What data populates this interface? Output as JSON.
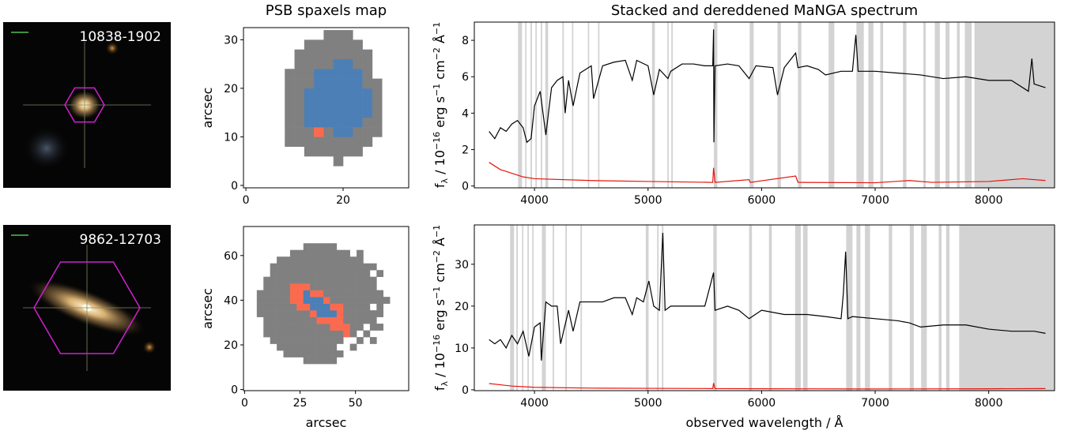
{
  "chart_data": [
    {
      "type": "image",
      "label": "10838-1902"
    },
    {
      "type": "heatmap",
      "title": "PSB spaxels map",
      "y_label": "arcsec",
      "x": [
        9,
        11,
        13,
        15,
        17,
        19,
        21,
        23,
        25,
        27
      ],
      "y": [
        5,
        7,
        9,
        11,
        13,
        15,
        17,
        19,
        21,
        23,
        25,
        27,
        29,
        31
      ],
      "z": [
        [
          0,
          0,
          0,
          0,
          0,
          1,
          0,
          0,
          0,
          0
        ],
        [
          0,
          0,
          1,
          1,
          1,
          1,
          1,
          1,
          0,
          0
        ],
        [
          1,
          1,
          1,
          1,
          1,
          1,
          1,
          1,
          1,
          0
        ],
        [
          1,
          1,
          1,
          3,
          1,
          2,
          2,
          1,
          1,
          1
        ],
        [
          1,
          1,
          2,
          2,
          2,
          2,
          2,
          2,
          1,
          1
        ],
        [
          1,
          1,
          2,
          2,
          2,
          2,
          2,
          2,
          2,
          1
        ],
        [
          1,
          1,
          2,
          2,
          2,
          2,
          2,
          2,
          2,
          1
        ],
        [
          1,
          1,
          2,
          2,
          2,
          2,
          2,
          2,
          2,
          1
        ],
        [
          1,
          1,
          1,
          2,
          2,
          2,
          2,
          2,
          1,
          1
        ],
        [
          1,
          1,
          1,
          2,
          2,
          2,
          2,
          2,
          1,
          0
        ],
        [
          0,
          1,
          1,
          1,
          1,
          2,
          2,
          1,
          1,
          0
        ],
        [
          0,
          1,
          1,
          1,
          1,
          1,
          1,
          1,
          1,
          0
        ],
        [
          0,
          0,
          1,
          1,
          1,
          1,
          1,
          1,
          0,
          0
        ],
        [
          0,
          0,
          0,
          0,
          1,
          1,
          1,
          0,
          0,
          0
        ]
      ],
      "palette": [
        null,
        "#808080",
        "#4b7fb6",
        "#fa6a4f"
      ],
      "xlim": [
        -0.5,
        33.5
      ],
      "ylim": [
        -0.5,
        32.5
      ],
      "xticks": [
        0,
        20
      ],
      "yticks": [
        0,
        10,
        20,
        30
      ]
    },
    {
      "type": "line",
      "title": "Stacked and dereddened MaNGA spectrum",
      "y_label": [
        "f",
        "λ",
        " / 10",
        "−16",
        " erg s",
        "−1",
        " cm",
        "−2",
        " Å",
        "−1"
      ],
      "xlim": [
        3470,
        8580
      ],
      "ylim": [
        -0.1,
        9.0
      ],
      "xticks": [
        4000,
        5000,
        6000,
        7000,
        8000
      ],
      "yticks": [
        0,
        2,
        4,
        6,
        8
      ],
      "shade_color": "#d3d3d3",
      "shaded_ranges": [
        [
          3855,
          3890
        ],
        [
          3918,
          3930
        ],
        [
          3965,
          3978
        ],
        [
          4008,
          4020
        ],
        [
          4055,
          4068
        ],
        [
          4095,
          4120
        ],
        [
          4245,
          4258
        ],
        [
          4330,
          4342
        ],
        [
          4470,
          4482
        ],
        [
          4560,
          4572
        ],
        [
          5035,
          5060
        ],
        [
          5170,
          5182
        ],
        [
          5205,
          5218
        ],
        [
          5580,
          5610
        ],
        [
          5895,
          5930
        ],
        [
          6140,
          6170
        ],
        [
          6320,
          6350
        ],
        [
          6590,
          6640
        ],
        [
          6835,
          6900
        ],
        [
          6940,
          6985
        ],
        [
          7045,
          7070
        ],
        [
          7245,
          7275
        ],
        [
          7425,
          7445
        ],
        [
          7525,
          7570
        ],
        [
          7620,
          7655
        ],
        [
          7720,
          7745
        ],
        [
          7790,
          7850
        ],
        [
          7875,
          8580
        ]
      ],
      "series": [
        {
          "color": "#000000",
          "x": [
            3600,
            3650,
            3700,
            3750,
            3800,
            3850,
            3900,
            3933,
            3970,
            4000,
            4050,
            4100,
            4150,
            4200,
            4250,
            4270,
            4300,
            4340,
            4400,
            4500,
            4520,
            4600,
            4700,
            4800,
            4861,
            4900,
            5000,
            5050,
            5100,
            5175,
            5200,
            5300,
            5400,
            5500,
            5570,
            5577,
            5580,
            5590,
            5700,
            5800,
            5890,
            5950,
            6100,
            6140,
            6200,
            6300,
            6320,
            6400,
            6500,
            6563,
            6700,
            6800,
            6830,
            6850,
            7000,
            7200,
            7400,
            7600,
            7800,
            8000,
            8200,
            8350,
            8380,
            8400,
            8500
          ],
          "values": [
            3.0,
            2.6,
            3.2,
            3.0,
            3.4,
            3.6,
            3.2,
            2.4,
            2.6,
            4.4,
            5.2,
            2.8,
            5.4,
            5.8,
            6.0,
            4.0,
            5.8,
            4.4,
            6.2,
            6.6,
            4.8,
            6.6,
            6.8,
            6.9,
            5.8,
            6.9,
            6.6,
            5.0,
            6.4,
            5.9,
            6.3,
            6.7,
            6.7,
            6.6,
            6.6,
            8.6,
            2.4,
            6.6,
            6.7,
            6.6,
            5.9,
            6.6,
            6.5,
            5.0,
            6.5,
            7.3,
            6.5,
            6.6,
            6.4,
            6.1,
            6.3,
            6.3,
            8.3,
            6.3,
            6.3,
            6.2,
            6.1,
            5.9,
            6.0,
            5.8,
            5.8,
            5.2,
            7.0,
            5.6,
            5.4
          ]
        },
        {
          "color": "#e8140c",
          "x": [
            3600,
            3650,
            3700,
            3800,
            3900,
            4000,
            4500,
            5000,
            5570,
            5577,
            5590,
            5890,
            5900,
            6300,
            6320,
            7000,
            7300,
            7500,
            8000,
            8300,
            8500
          ],
          "values": [
            1.3,
            1.1,
            0.9,
            0.7,
            0.5,
            0.4,
            0.3,
            0.25,
            0.2,
            1.0,
            0.2,
            0.35,
            0.2,
            0.55,
            0.2,
            0.18,
            0.3,
            0.2,
            0.25,
            0.4,
            0.3
          ]
        }
      ]
    },
    {
      "type": "image",
      "label": "9862-12703"
    },
    {
      "type": "heatmap",
      "x_label": "arcsec",
      "y_label": "arcsec",
      "x": [
        7,
        10,
        13,
        16,
        19,
        22,
        25,
        28,
        31,
        34,
        37,
        40,
        43,
        46,
        49,
        52,
        55,
        58,
        61,
        64
      ],
      "y": [
        13,
        16,
        19,
        22,
        25,
        28,
        31,
        34,
        37,
        40,
        43,
        46,
        49,
        52,
        55,
        58,
        61,
        64
      ],
      "z": [
        [
          0,
          0,
          0,
          0,
          0,
          0,
          0,
          1,
          1,
          1,
          1,
          1,
          0,
          0,
          0,
          0,
          0,
          0,
          0,
          0
        ],
        [
          0,
          0,
          0,
          0,
          1,
          1,
          1,
          1,
          1,
          1,
          1,
          1,
          1,
          0,
          0,
          0,
          0,
          0,
          0,
          0
        ],
        [
          0,
          0,
          0,
          1,
          1,
          1,
          1,
          1,
          1,
          1,
          1,
          1,
          0,
          0,
          1,
          0,
          0,
          0,
          0,
          0
        ],
        [
          0,
          0,
          1,
          1,
          1,
          1,
          1,
          1,
          1,
          1,
          1,
          1,
          1,
          0,
          0,
          1,
          0,
          1,
          0,
          0
        ],
        [
          0,
          1,
          1,
          1,
          1,
          1,
          1,
          1,
          1,
          1,
          1,
          1,
          1,
          3,
          1,
          0,
          1,
          0,
          0,
          0
        ],
        [
          0,
          1,
          1,
          1,
          1,
          1,
          1,
          1,
          1,
          1,
          1,
          3,
          3,
          3,
          1,
          1,
          0,
          1,
          1,
          0
        ],
        [
          0,
          1,
          1,
          1,
          1,
          1,
          1,
          1,
          1,
          3,
          3,
          3,
          3,
          1,
          1,
          1,
          1,
          1,
          0,
          0
        ],
        [
          1,
          1,
          1,
          1,
          1,
          1,
          1,
          1,
          3,
          2,
          2,
          2,
          3,
          1,
          1,
          1,
          1,
          1,
          1,
          0
        ],
        [
          1,
          1,
          1,
          1,
          1,
          1,
          3,
          3,
          2,
          2,
          2,
          3,
          3,
          1,
          1,
          1,
          1,
          0,
          1,
          0
        ],
        [
          1,
          1,
          1,
          1,
          1,
          3,
          3,
          2,
          2,
          2,
          3,
          1,
          1,
          1,
          1,
          1,
          1,
          1,
          1,
          1
        ],
        [
          1,
          1,
          1,
          1,
          1,
          3,
          3,
          2,
          3,
          3,
          1,
          1,
          1,
          1,
          1,
          1,
          1,
          1,
          1,
          0
        ],
        [
          0,
          1,
          1,
          1,
          1,
          3,
          3,
          3,
          1,
          1,
          1,
          1,
          1,
          1,
          1,
          1,
          1,
          1,
          0,
          0
        ],
        [
          0,
          1,
          1,
          1,
          1,
          1,
          1,
          1,
          1,
          1,
          1,
          1,
          1,
          1,
          1,
          1,
          1,
          1,
          0,
          0
        ],
        [
          0,
          0,
          1,
          1,
          1,
          1,
          1,
          1,
          1,
          1,
          1,
          1,
          1,
          1,
          1,
          1,
          1,
          0,
          1,
          0
        ],
        [
          0,
          0,
          1,
          1,
          1,
          1,
          1,
          1,
          1,
          1,
          1,
          1,
          1,
          1,
          1,
          1,
          1,
          1,
          0,
          0
        ],
        [
          0,
          0,
          0,
          1,
          1,
          1,
          1,
          1,
          1,
          1,
          1,
          1,
          1,
          1,
          1,
          1,
          0,
          0,
          0,
          0
        ],
        [
          0,
          0,
          0,
          0,
          0,
          1,
          1,
          1,
          1,
          1,
          1,
          1,
          1,
          1,
          0,
          1,
          0,
          0,
          0,
          0
        ],
        [
          0,
          0,
          0,
          0,
          0,
          0,
          0,
          1,
          1,
          1,
          1,
          1,
          0,
          0,
          0,
          0,
          0,
          0,
          0,
          0
        ]
      ],
      "palette": [
        null,
        "#808080",
        "#4b7fb6",
        "#fa6a4f"
      ],
      "xlim": [
        -0.5,
        74
      ],
      "ylim": [
        -0.5,
        73
      ],
      "xticks": [
        0,
        25,
        50
      ],
      "yticks": [
        0,
        20,
        40,
        60
      ]
    },
    {
      "type": "line",
      "x_label": "observed wavelength / Å",
      "y_label": [
        "f",
        "λ",
        " / 10",
        "−16",
        " erg s",
        "−1",
        " cm",
        "−2",
        " Å",
        "−1"
      ],
      "xlim": [
        3470,
        8580
      ],
      "ylim": [
        -0.2,
        39.4
      ],
      "xticks": [
        4000,
        5000,
        6000,
        7000,
        8000
      ],
      "yticks": [
        0,
        10,
        20,
        30
      ],
      "shade_color": "#d3d3d3",
      "shaded_ranges": [
        [
          3785,
          3820
        ],
        [
          3840,
          3853
        ],
        [
          3890,
          3902
        ],
        [
          3938,
          3950
        ],
        [
          3980,
          3992
        ],
        [
          4065,
          4100
        ],
        [
          4160,
          4173
        ],
        [
          4272,
          4285
        ],
        [
          4405,
          4418
        ],
        [
          4980,
          5005
        ],
        [
          5080,
          5093
        ],
        [
          5122,
          5135
        ],
        [
          5575,
          5605
        ],
        [
          5890,
          5915
        ],
        [
          6065,
          6090
        ],
        [
          6295,
          6345
        ],
        [
          6365,
          6405
        ],
        [
          6745,
          6800
        ],
        [
          6835,
          6870
        ],
        [
          6910,
          6955
        ],
        [
          7120,
          7150
        ],
        [
          7305,
          7340
        ],
        [
          7405,
          7455
        ],
        [
          7560,
          7585
        ],
        [
          7625,
          7655
        ],
        [
          7740,
          8580
        ]
      ],
      "series": [
        {
          "color": "#000000",
          "x": [
            3600,
            3650,
            3700,
            3750,
            3800,
            3850,
            3900,
            3950,
            4000,
            4050,
            4060,
            4100,
            4150,
            4200,
            4230,
            4300,
            4340,
            4400,
            4500,
            4600,
            4700,
            4800,
            4861,
            4900,
            4959,
            5007,
            5050,
            5100,
            5130,
            5150,
            5200,
            5300,
            5400,
            5500,
            5577,
            5590,
            5700,
            5800,
            5890,
            6000,
            6200,
            6400,
            6563,
            6700,
            6720,
            6740,
            6760,
            6800,
            7000,
            7200,
            7300,
            7400,
            7600,
            7800,
            8000,
            8200,
            8400,
            8500
          ],
          "values": [
            12,
            11,
            12,
            10,
            13,
            11,
            14,
            8,
            15,
            16,
            7,
            21,
            20,
            20,
            11,
            19,
            14,
            21,
            21,
            21,
            22,
            22,
            18,
            22,
            21,
            26,
            20,
            19,
            37.5,
            19,
            20,
            20,
            20,
            20,
            28,
            19,
            20,
            19,
            17,
            19,
            18,
            18,
            17.5,
            17,
            23,
            33,
            17,
            17.5,
            17,
            16.5,
            16,
            15,
            15.5,
            15.5,
            14.5,
            14,
            14,
            13.5
          ]
        },
        {
          "color": "#e8140c",
          "x": [
            3600,
            3700,
            3800,
            4000,
            4500,
            5000,
            5570,
            5577,
            5590,
            6000,
            7000,
            8000,
            8500
          ],
          "values": [
            1.5,
            1.2,
            0.9,
            0.6,
            0.4,
            0.35,
            0.3,
            1.6,
            0.3,
            0.25,
            0.2,
            0.25,
            0.3
          ]
        }
      ]
    }
  ]
}
